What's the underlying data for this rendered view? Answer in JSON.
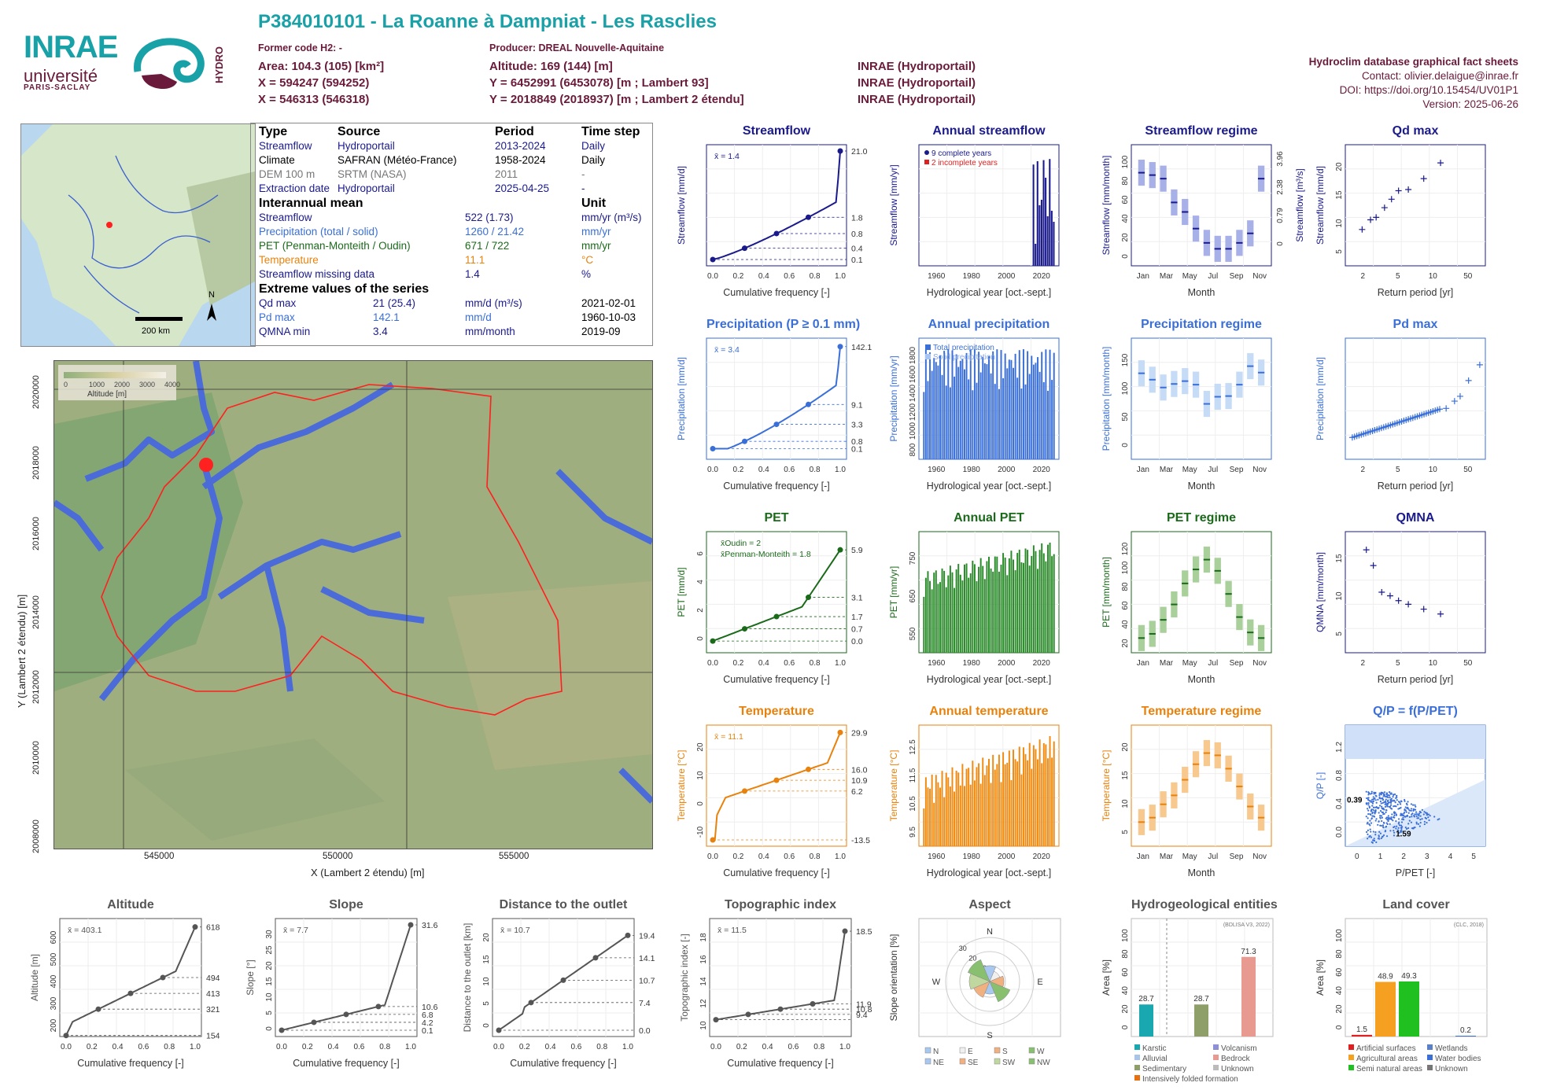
{
  "header": {
    "title": "P384010101 - La Roanne à Dampniat - Les Rasclies",
    "former_code": "Former code H2: -",
    "area": "Area: 104.3 (105) [km²]",
    "x": "X = 594247 (594252)",
    "x2": "X = 546313 (546318)",
    "producer": "Producer: DREAL Nouvelle-Aquitaine",
    "altitude": "Altitude: 169 (144) [m]",
    "y": "Y = 6452991 (6453078) [m ; Lambert 93]",
    "y2": "Y = 2018849 (2018937) [m ; Lambert 2 étendu]",
    "src1": "INRAE (Hydroportail)",
    "src2": "INRAE (Hydroportail)",
    "src3": "INRAE (Hydroportail)",
    "sheet_title": "Hydroclim database graphical fact sheets",
    "contact": "Contact: olivier.delaigue@inrae.fr",
    "doi": "DOI: https://doi.org/10.15454/UV01P1",
    "version": "Version: 2025-06-26"
  },
  "logos": {
    "inrae": "INRAE",
    "univ": "université",
    "ps": "PARIS-SACLAY",
    "hydro": "HYDRO"
  },
  "infobox": {
    "h_type": "Type",
    "h_source": "Source",
    "h_period": "Period",
    "h_step": "Time step",
    "rows": [
      {
        "type": "Streamflow",
        "source": "Hydroportail",
        "period": "2013-2024",
        "step": "Daily",
        "color": "#1a1a8c"
      },
      {
        "type": "Climate",
        "source": "SAFRAN (Météo-France)",
        "period": "1958-2024",
        "step": "Daily",
        "color": "#000000"
      },
      {
        "type": "DEM 100 m",
        "source": "SRTM (NASA)",
        "period": "2011",
        "step": "-",
        "color": "#777777"
      },
      {
        "type": "Extraction date",
        "source": "Hydroportail",
        "period": "2025-04-25",
        "step": "-",
        "color": "#1a1a8c"
      }
    ],
    "h_interannual": "Interannual mean",
    "h_unit": "Unit",
    "means": [
      {
        "label": "Streamflow",
        "value": "522 (1.73)",
        "unit": "mm/yr (m³/s)",
        "color": "#1a1a8c"
      },
      {
        "label": "Precipitation (total / solid)",
        "value": "1260 / 21.42",
        "unit": "mm/yr",
        "color": "#3a6fd8"
      },
      {
        "label": "PET (Penman-Monteith / Oudin)",
        "value": "671 / 722",
        "unit": "mm/yr",
        "color": "#1a6a1a"
      },
      {
        "label": "Temperature",
        "value": "11.1",
        "unit": "°C",
        "color": "#e8820c"
      },
      {
        "label": "Streamflow missing data",
        "value": "1.4",
        "unit": "%",
        "color": "#1a1a8c"
      }
    ],
    "h_extreme": "Extreme values of the series",
    "extremes": [
      {
        "label": "Qd max",
        "value": "21 (25.4)",
        "unit": "mm/d (m³/s)",
        "date": "2021-02-01",
        "color": "#1a1a8c"
      },
      {
        "label": "Pd max",
        "value": "142.1",
        "unit": "mm/d",
        "date": "1960-10-03",
        "color": "#3a6fd8"
      },
      {
        "label": "QMNA min",
        "value": "3.4",
        "unit": "mm/month",
        "date": "2019-09",
        "color": "#1a1a8c"
      }
    ]
  },
  "maps": {
    "scale": "200 km",
    "north": "N",
    "alt_legend_title": "Altitude [m]",
    "alt_ticks": [
      "0",
      "1000",
      "2000",
      "3000",
      "4000"
    ],
    "main_xlabel": "X (Lambert 2 étendu) [m]",
    "main_ylabel": "Y (Lambert 2 étendu) [m]",
    "main_xticks": [
      "545000",
      "550000",
      "555000"
    ],
    "main_yticks": [
      "2008000",
      "2010000",
      "2012000",
      "2014000",
      "2016000",
      "2018000",
      "2020000"
    ]
  },
  "chart_data": [
    {
      "id": "streamflow_cdf",
      "type": "line",
      "title": "Streamflow",
      "xlabel": "Cumulative frequency [-]",
      "ylabel": "Streamflow [mm/d]",
      "mean_label": "x̄ = 1.4",
      "right_ticks": [
        "21.0",
        "1.8",
        "0.8",
        "0.4",
        "0.1"
      ],
      "color": "#1a1a8c"
    },
    {
      "id": "annual_streamflow",
      "type": "bar",
      "title": "Annual streamflow",
      "xlabel": "Hydrological year [oct.-sept.]",
      "ylabel": "Streamflow [mm/yr]",
      "legend": [
        "9 complete years",
        "2 incomplete years"
      ],
      "xticks": [
        "1960",
        "1980",
        "2000",
        "2020"
      ],
      "color": "#1a1a8c"
    },
    {
      "id": "streamflow_regime",
      "type": "bar",
      "title": "Streamflow regime",
      "xlabel": "Month",
      "ylabel": "Streamflow [mm/month]",
      "ylabel2": "Streamflow [m³/s]",
      "right_ticks": [
        "3.96",
        "2.38",
        "0.79",
        "0"
      ],
      "yticks": [
        "0",
        "20",
        "40",
        "60",
        "80",
        "100"
      ],
      "xticks": [
        "Jan",
        "Mar",
        "May",
        "Jul",
        "Sep",
        "Nov"
      ],
      "values": [
        73,
        71,
        68,
        48,
        40,
        26,
        14,
        9,
        9,
        14,
        22,
        68
      ],
      "color": "#1a1a8c"
    },
    {
      "id": "qd_max",
      "type": "scatter",
      "title": "Qd max",
      "xlabel": "Return period [yr]",
      "ylabel": "Streamflow [mm/d]",
      "xticks": [
        "2",
        "5",
        "10",
        "50"
      ],
      "yticks": [
        "5",
        "10",
        "15",
        "20"
      ],
      "color": "#1a1a8c"
    },
    {
      "id": "precip_cdf",
      "type": "line",
      "title": "Precipitation (P ≥ 0.1 mm)",
      "xlabel": "Cumulative frequency [-]",
      "ylabel": "Precipitation [mm/d]",
      "mean_label": "x̄ = 3.4",
      "right_ticks": [
        "142.1",
        "9.1",
        "3.3",
        "0.8",
        "0.1"
      ],
      "color": "#3a6fd8"
    },
    {
      "id": "annual_precip",
      "type": "bar",
      "title": "Annual precipitation",
      "xlabel": "Hydrological year [oct.-sept.]",
      "ylabel": "Precipitation [mm/yr]",
      "legend": [
        "Total precipitation",
        "Solid precipitation"
      ],
      "xticks": [
        "1960",
        "1980",
        "2000",
        "2020"
      ],
      "yticks": [
        "800",
        "1000",
        "1200",
        "1400",
        "1600",
        "1800"
      ],
      "color": "#3a6fd8"
    },
    {
      "id": "precip_regime",
      "type": "bar",
      "title": "Precipitation regime",
      "xlabel": "Month",
      "ylabel": "Precipitation [mm/month]",
      "yticks": [
        "0",
        "50",
        "100",
        "150"
      ],
      "xticks": [
        "Jan",
        "Mar",
        "May",
        "Jul",
        "Sep",
        "Nov"
      ],
      "values": [
        112,
        103,
        92,
        97,
        101,
        96,
        69,
        79,
        80,
        96,
        122,
        113
      ],
      "color": "#3a6fd8"
    },
    {
      "id": "pd_max",
      "type": "scatter",
      "title": "Pd max",
      "xlabel": "Return period [yr]",
      "ylabel": "Precipitation [mm/d]",
      "xticks": [
        "2",
        "5",
        "10",
        "50"
      ],
      "color": "#3a6fd8"
    },
    {
      "id": "pet_cdf",
      "type": "line",
      "title": "PET",
      "xlabel": "Cumulative frequency [-]",
      "ylabel": "PET [mm/d]",
      "legend": [
        "x̄Oudin = 2",
        "x̄Penman-Monteith = 1.8"
      ],
      "right_ticks": [
        "5.9",
        "3.1",
        "1.7",
        "0.7",
        "0.0"
      ],
      "yticks": [
        "0",
        "2",
        "4",
        "6"
      ],
      "color": "#1a6a1a"
    },
    {
      "id": "annual_pet",
      "type": "bar",
      "title": "Annual PET",
      "xlabel": "Hydrological year [oct.-sept.]",
      "ylabel": "PET [mm/yr]",
      "xticks": [
        "1960",
        "1980",
        "2000",
        "2020"
      ],
      "yticks": [
        "550",
        "650",
        "750"
      ],
      "color": "#1a6a1a"
    },
    {
      "id": "pet_regime",
      "type": "bar",
      "title": "PET regime",
      "xlabel": "Month",
      "ylabel": "PET [mm/month]",
      "yticks": [
        "20",
        "40",
        "60",
        "80",
        "100",
        "120"
      ],
      "xticks": [
        "Jan",
        "Mar",
        "May",
        "Jul",
        "Sep",
        "Nov"
      ],
      "values": [
        12,
        18,
        38,
        60,
        90,
        110,
        124,
        108,
        75,
        42,
        20,
        12
      ],
      "color": "#1a6a1a"
    },
    {
      "id": "qmna",
      "type": "scatter",
      "title": "QMNA",
      "xlabel": "Return period [yr]",
      "ylabel": "QMNA [mm/month]",
      "xticks": [
        "2",
        "5",
        "10",
        "50"
      ],
      "yticks": [
        "5",
        "10",
        "15"
      ],
      "color": "#1a1a8c"
    },
    {
      "id": "temp_cdf",
      "type": "line",
      "title": "Temperature",
      "xlabel": "Cumulative frequency [-]",
      "ylabel": "Temperature [°C]",
      "mean_label": "x̄ = 11.1",
      "right_ticks": [
        "29.9",
        "16.0",
        "10.9",
        "6.2",
        "-13.5"
      ],
      "yticks": [
        "-10",
        "0",
        "10",
        "20"
      ],
      "color": "#e8820c"
    },
    {
      "id": "annual_temp",
      "type": "bar",
      "title": "Annual temperature",
      "xlabel": "Hydrological year [oct.-sept.]",
      "ylabel": "Temperature [°C]",
      "xticks": [
        "1960",
        "1980",
        "2000",
        "2020"
      ],
      "yticks": [
        "9.5",
        "10.5",
        "11.5",
        "12.5"
      ],
      "color": "#e8820c"
    },
    {
      "id": "temp_regime",
      "type": "bar",
      "title": "Temperature regime",
      "xlabel": "Month",
      "ylabel": "Temperature [°C]",
      "yticks": [
        "5",
        "10",
        "15",
        "20"
      ],
      "xticks": [
        "Jan",
        "Mar",
        "May",
        "Jul",
        "Sep",
        "Nov"
      ],
      "values": [
        4,
        5,
        8,
        10,
        13.5,
        17,
        19.5,
        19,
        16,
        12,
        7.5,
        5
      ],
      "color": "#e8820c"
    },
    {
      "id": "qp_ppet",
      "type": "scatter",
      "title": "Q/P = f(P/PET)",
      "xlabel": "P/PET [-]",
      "ylabel": "Q/P [-]",
      "annot_y": "0.39",
      "annot_x": "1.59",
      "xticks": [
        "0",
        "1",
        "2",
        "3",
        "4",
        "5"
      ],
      "yticks": [
        "0.0",
        "0.4",
        "0.8",
        "1.2"
      ],
      "color": "#3a6fd8"
    },
    {
      "id": "altitude_cdf",
      "type": "line",
      "title": "Altitude",
      "xlabel": "Cumulative frequency [-]",
      "ylabel": "Altitude [m]",
      "mean_label": "x̄ = 403.1",
      "right_ticks": [
        "618",
        "494",
        "413",
        "321",
        "154"
      ],
      "yticks": [
        "200",
        "300",
        "400",
        "500",
        "600"
      ],
      "color": "#555555"
    },
    {
      "id": "slope_cdf",
      "type": "line",
      "title": "Slope",
      "xlabel": "Cumulative frequency [-]",
      "ylabel": "Slope [°]",
      "mean_label": "x̄ = 7.7",
      "right_ticks": [
        "31.6",
        "10.6",
        "6.8",
        "4.2",
        "0.1"
      ],
      "yticks": [
        "0",
        "5",
        "10",
        "15",
        "20",
        "25",
        "30"
      ],
      "color": "#555555"
    },
    {
      "id": "distance_cdf",
      "type": "line",
      "title": "Distance to the outlet",
      "xlabel": "Cumulative frequency [-]",
      "ylabel": "Distance to the outlet [km]",
      "mean_label": "x̄ = 10.7",
      "right_ticks": [
        "19.4",
        "14.1",
        "10.7",
        "7.4",
        "0.0"
      ],
      "yticks": [
        "0",
        "5",
        "10",
        "15",
        "20"
      ],
      "color": "#555555"
    },
    {
      "id": "topo_cdf",
      "type": "line",
      "title": "Topographic index",
      "xlabel": "Cumulative frequency [-]",
      "ylabel": "Topographic index [-]",
      "mean_label": "x̄ = 11.5",
      "right_ticks": [
        "18.5",
        "11.9",
        "10.8",
        "9.4"
      ],
      "yticks": [
        "10",
        "12",
        "14",
        "16",
        "18"
      ],
      "color": "#555555"
    },
    {
      "id": "aspect",
      "type": "pie",
      "title": "Aspect",
      "ylabel": "Slope orientation [%]",
      "directions": [
        "N",
        "E",
        "S",
        "W"
      ],
      "rings": [
        "10",
        "20",
        "30"
      ],
      "legend": [
        "N",
        "E",
        "S",
        "W",
        "NE",
        "SE",
        "SW",
        "NW"
      ]
    },
    {
      "id": "hydrogeo",
      "type": "bar",
      "title": "Hydrogeological entities",
      "ylabel": "Area [%]",
      "source": "(BDLISA V3, 2022)",
      "yticks": [
        "0",
        "20",
        "40",
        "60",
        "80",
        "100"
      ],
      "categories": [
        "Karstic",
        "Sedimentary",
        "Bedrock"
      ],
      "values": [
        28.7,
        28.7,
        71.3
      ],
      "legend": [
        "Karstic",
        "Volcanism",
        "Alluvial",
        "Bedrock",
        "Sedimentary",
        "Unknown",
        "Intensively folded formation"
      ]
    },
    {
      "id": "landcover",
      "type": "bar",
      "title": "Land cover",
      "ylabel": "Area [%]",
      "source": "(CLC, 2018)",
      "yticks": [
        "0",
        "20",
        "40",
        "60",
        "80",
        "100"
      ],
      "categories": [
        "Artificial surfaces",
        "Agricultural areas",
        "Semi natural areas",
        "Water bodies"
      ],
      "values": [
        1.5,
        48.9,
        49.3,
        0.2
      ],
      "legend": [
        "Artificial surfaces",
        "Wetlands",
        "Agricultural areas",
        "Water bodies",
        "Semi natural areas",
        "Unknown"
      ]
    }
  ]
}
